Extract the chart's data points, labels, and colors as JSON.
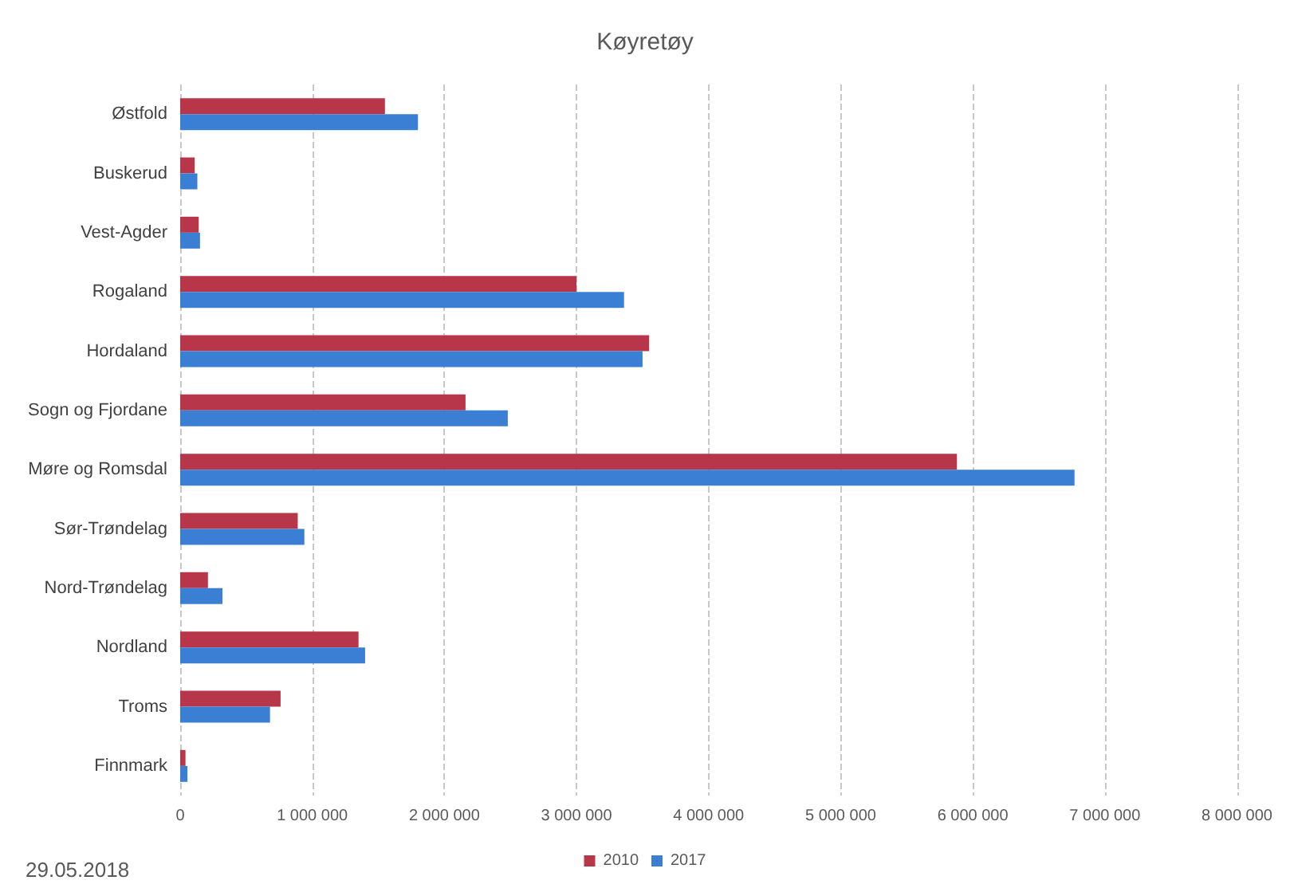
{
  "chart_data": {
    "type": "bar",
    "orientation": "horizontal",
    "title": "Køyretøy",
    "categories": [
      "Østfold",
      "Buskerud",
      "Vest-Agder",
      "Rogaland",
      "Hordaland",
      "Sogn og Fjordane",
      "Møre og Romsdal",
      "Sør-Trøndelag",
      "Nord-Trøndelag",
      "Nordland",
      "Troms",
      "Finnmark"
    ],
    "series": [
      {
        "name": "2010",
        "color": "#b8364a",
        "values": [
          1550000,
          110000,
          140000,
          3000000,
          3550000,
          2160000,
          5880000,
          890000,
          210000,
          1350000,
          760000,
          40000
        ]
      },
      {
        "name": "2017",
        "color": "#3a7fd3",
        "values": [
          1800000,
          130000,
          150000,
          3360000,
          3500000,
          2480000,
          6770000,
          940000,
          320000,
          1400000,
          680000,
          55000
        ]
      }
    ],
    "xlim": [
      0,
      8000000
    ],
    "xticks": [
      0,
      {
        "value": 1000000,
        "label": "1 000 000"
      },
      {
        "value": 2000000,
        "label": "2 000 000"
      },
      {
        "value": 3000000,
        "label": "3 000 000"
      },
      {
        "value": 4000000,
        "label": "4 000 000"
      },
      {
        "value": 5000000,
        "label": "5 000 000"
      },
      {
        "value": 6000000,
        "label": "6 000 000"
      },
      {
        "value": 7000000,
        "label": "7 000 000"
      },
      {
        "value": 8000000,
        "label": "8 000 000"
      }
    ],
    "grid": "x",
    "legend": "bottom",
    "annotations": [
      "29.05.2018"
    ]
  }
}
